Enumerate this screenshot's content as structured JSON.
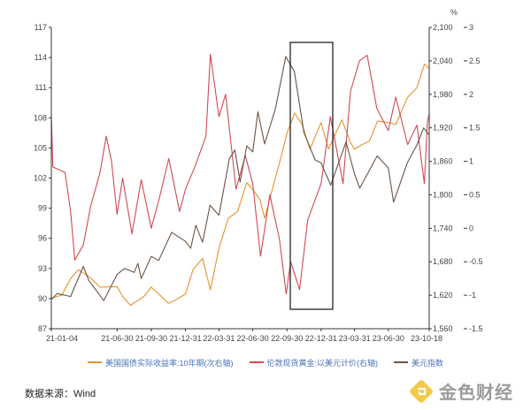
{
  "chart_data": {
    "type": "line",
    "y_unit_right": "%",
    "x_tick_labels": [
      "21-01-04",
      "21-06-30",
      "21-09-30",
      "21-12-31",
      "22-03-31",
      "22-06-30",
      "22-09-30",
      "22-12-31",
      "23-03-31",
      "23-06-30",
      "23-10-18"
    ],
    "left_axis": {
      "ticks": [
        "87",
        "90",
        "93",
        "96",
        "99",
        "102",
        "105",
        "108",
        "111",
        "114",
        "117"
      ],
      "ylim": [
        87,
        117
      ]
    },
    "right_axis_outer": {
      "ticks": [
        "-1.5",
        "-1",
        "-0.5",
        "0",
        "0.5",
        "1",
        "1.5",
        "2",
        "2.5",
        "3"
      ],
      "ylim": [
        -1.5,
        3
      ]
    },
    "right_axis_inner": {
      "ticks": [
        "1,560",
        "1,620",
        "1,680",
        "1,740",
        "1,800",
        "1,860",
        "1,920",
        "1,980",
        "2,040",
        "2,100"
      ],
      "ylim": [
        1560,
        2100
      ]
    },
    "series": [
      {
        "name": "美国国债实际收益率:10年期(次右轴)",
        "axis": "right_outer",
        "color": "#e8922c",
        "points": [
          [
            "2021-01-04",
            -1.04
          ],
          [
            "2021-02-01",
            -1.0
          ],
          [
            "2021-02-25",
            -0.75
          ],
          [
            "2021-03-18",
            -0.62
          ],
          [
            "2021-04-15",
            -0.72
          ],
          [
            "2021-05-15",
            -0.88
          ],
          [
            "2021-06-30",
            -0.87
          ],
          [
            "2021-07-15",
            -1.02
          ],
          [
            "2021-08-05",
            -1.15
          ],
          [
            "2021-09-10",
            -1.02
          ],
          [
            "2021-09-30",
            -0.88
          ],
          [
            "2021-10-20",
            -0.98
          ],
          [
            "2021-11-15",
            -1.12
          ],
          [
            "2021-12-01",
            -1.08
          ],
          [
            "2021-12-31",
            -0.98
          ],
          [
            "2022-01-20",
            -0.62
          ],
          [
            "2022-02-15",
            -0.45
          ],
          [
            "2022-03-08",
            -0.92
          ],
          [
            "2022-03-31",
            -0.3
          ],
          [
            "2022-04-25",
            0.15
          ],
          [
            "2022-05-20",
            0.25
          ],
          [
            "2022-06-14",
            0.68
          ],
          [
            "2022-06-30",
            0.58
          ],
          [
            "2022-07-20",
            0.42
          ],
          [
            "2022-08-01",
            0.15
          ],
          [
            "2022-08-25",
            0.65
          ],
          [
            "2022-09-15",
            1.08
          ],
          [
            "2022-09-30",
            1.42
          ],
          [
            "2022-10-21",
            1.72
          ],
          [
            "2022-11-10",
            1.55
          ],
          [
            "2022-12-01",
            1.18
          ],
          [
            "2022-12-31",
            1.58
          ],
          [
            "2023-01-20",
            1.18
          ],
          [
            "2023-02-25",
            1.62
          ],
          [
            "2023-03-20",
            1.28
          ],
          [
            "2023-03-31",
            1.18
          ],
          [
            "2023-04-20",
            1.25
          ],
          [
            "2023-05-10",
            1.3
          ],
          [
            "2023-06-01",
            1.6
          ],
          [
            "2023-06-30",
            1.58
          ],
          [
            "2023-07-20",
            1.55
          ],
          [
            "2023-08-20",
            1.95
          ],
          [
            "2023-09-15",
            2.1
          ],
          [
            "2023-10-05",
            2.45
          ],
          [
            "2023-10-18",
            2.38
          ]
        ]
      },
      {
        "name": "伦敦现货黄金:以美元计价(右轴)",
        "axis": "right_inner",
        "color": "#d04a52",
        "points": [
          [
            "2021-01-04",
            1945
          ],
          [
            "2021-01-08",
            1850
          ],
          [
            "2021-02-10",
            1840
          ],
          [
            "2021-02-25",
            1770
          ],
          [
            "2021-03-08",
            1683
          ],
          [
            "2021-03-31",
            1710
          ],
          [
            "2021-04-20",
            1780
          ],
          [
            "2021-05-15",
            1840
          ],
          [
            "2021-06-01",
            1905
          ],
          [
            "2021-06-15",
            1860
          ],
          [
            "2021-06-30",
            1765
          ],
          [
            "2021-07-15",
            1830
          ],
          [
            "2021-08-09",
            1730
          ],
          [
            "2021-09-03",
            1827
          ],
          [
            "2021-09-30",
            1740
          ],
          [
            "2021-10-22",
            1795
          ],
          [
            "2021-11-16",
            1865
          ],
          [
            "2021-12-15",
            1770
          ],
          [
            "2021-12-31",
            1810
          ],
          [
            "2022-01-25",
            1850
          ],
          [
            "2022-02-24",
            1905
          ],
          [
            "2022-03-08",
            2052
          ],
          [
            "2022-03-31",
            1940
          ],
          [
            "2022-04-18",
            1980
          ],
          [
            "2022-05-16",
            1810
          ],
          [
            "2022-06-10",
            1870
          ],
          [
            "2022-06-30",
            1820
          ],
          [
            "2022-07-21",
            1690
          ],
          [
            "2022-08-15",
            1800
          ],
          [
            "2022-09-10",
            1720
          ],
          [
            "2022-09-28",
            1622
          ],
          [
            "2022-10-10",
            1680
          ],
          [
            "2022-11-03",
            1630
          ],
          [
            "2022-11-25",
            1755
          ],
          [
            "2022-12-31",
            1820
          ],
          [
            "2023-01-25",
            1940
          ],
          [
            "2023-02-28",
            1820
          ],
          [
            "2023-03-20",
            1985
          ],
          [
            "2023-04-13",
            2040
          ],
          [
            "2023-05-04",
            2050
          ],
          [
            "2023-05-30",
            1955
          ],
          [
            "2023-06-30",
            1915
          ],
          [
            "2023-07-20",
            1975
          ],
          [
            "2023-08-21",
            1890
          ],
          [
            "2023-09-15",
            1925
          ],
          [
            "2023-10-05",
            1820
          ],
          [
            "2023-10-13",
            1930
          ],
          [
            "2023-10-18",
            1945
          ]
        ]
      },
      {
        "name": "美元指数",
        "axis": "left",
        "color": "#6b5344",
        "points": [
          [
            "2021-01-04",
            89.9
          ],
          [
            "2021-01-20",
            90.5
          ],
          [
            "2021-02-25",
            90.2
          ],
          [
            "2021-03-31",
            93.2
          ],
          [
            "2021-04-15",
            91.8
          ],
          [
            "2021-05-25",
            89.8
          ],
          [
            "2021-06-30",
            92.4
          ],
          [
            "2021-07-20",
            93.0
          ],
          [
            "2021-08-15",
            92.6
          ],
          [
            "2021-08-25",
            93.5
          ],
          [
            "2021-09-03",
            92.0
          ],
          [
            "2021-09-30",
            94.2
          ],
          [
            "2021-10-20",
            93.8
          ],
          [
            "2021-11-24",
            96.6
          ],
          [
            "2021-12-31",
            95.7
          ],
          [
            "2022-01-14",
            95.0
          ],
          [
            "2022-01-28",
            97.3
          ],
          [
            "2022-02-15",
            95.6
          ],
          [
            "2022-03-07",
            99.3
          ],
          [
            "2022-03-31",
            98.3
          ],
          [
            "2022-04-28",
            103.9
          ],
          [
            "2022-05-13",
            104.8
          ],
          [
            "2022-05-27",
            101.6
          ],
          [
            "2022-06-14",
            105.2
          ],
          [
            "2022-06-30",
            104.6
          ],
          [
            "2022-07-14",
            108.6
          ],
          [
            "2022-08-01",
            105.4
          ],
          [
            "2022-08-30",
            108.9
          ],
          [
            "2022-09-27",
            114.1
          ],
          [
            "2022-10-20",
            112.6
          ],
          [
            "2022-11-15",
            106.5
          ],
          [
            "2022-12-15",
            103.8
          ],
          [
            "2022-12-31",
            103.5
          ],
          [
            "2023-01-26",
            101.3
          ],
          [
            "2023-03-08",
            105.6
          ],
          [
            "2023-03-31",
            102.4
          ],
          [
            "2023-04-14",
            101.0
          ],
          [
            "2023-05-31",
            104.2
          ],
          [
            "2023-06-30",
            103.0
          ],
          [
            "2023-07-14",
            99.6
          ],
          [
            "2023-08-20",
            103.5
          ],
          [
            "2023-09-15",
            105.3
          ],
          [
            "2023-10-03",
            107.0
          ],
          [
            "2023-10-18",
            106.3
          ]
        ]
      }
    ],
    "grid": false,
    "legend": "bottom",
    "annotation": "highlight box 2022-09 to 2022-12"
  },
  "source": {
    "text": "数据来源：Wind"
  },
  "brand": {
    "text": "金色财经",
    "icon": "gold-logo-icon"
  }
}
